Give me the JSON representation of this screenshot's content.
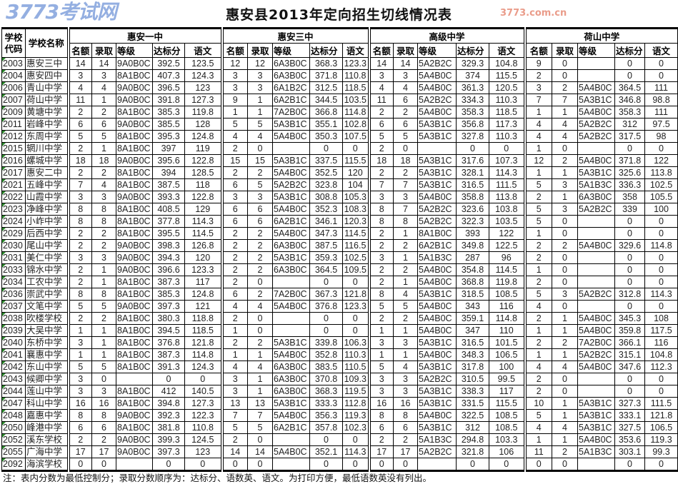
{
  "title": "惠安县2013年定向招生切线情况表",
  "header": {
    "code": "学校代码",
    "name": "学校名称",
    "groups": [
      "惠安一中",
      "惠安三中",
      "高级中学",
      "荷山中学"
    ],
    "sub": [
      "名额",
      "录取",
      "等级",
      "达标分",
      "语文"
    ]
  },
  "rows": [
    [
      "2003",
      "惠安三中",
      "14",
      "14",
      "9A0B0C",
      "392.5",
      "123.5",
      "12",
      "12",
      "6A3B0C",
      "368.3",
      "123.3",
      "14",
      "14",
      "5A2B2C",
      "329.3",
      "104.8",
      "9",
      "0",
      "",
      "0",
      "0"
    ],
    [
      "2004",
      "惠安四中",
      "3",
      "3",
      "8A1B0C",
      "407.3",
      "124.3",
      "3",
      "3",
      "6A3B0C",
      "371.8",
      "110.8",
      "3",
      "3",
      "5A4B0C",
      "374",
      "115.5",
      "2",
      "0",
      "",
      "0",
      "0"
    ],
    [
      "2006",
      "青山中学",
      "4",
      "4",
      "9A0B0C",
      "396.5",
      "123",
      "3",
      "3",
      "6A1B2C",
      "312.5",
      "118.5",
      "4",
      "4",
      "5A4B0C",
      "361.3",
      "120.5",
      "3",
      "2",
      "5A4B0C",
      "364.5",
      "111"
    ],
    [
      "2007",
      "荷山中学",
      "11",
      "1",
      "9A0B0C",
      "391.8",
      "127.3",
      "9",
      "1",
      "6A2B1C",
      "344.5",
      "103.5",
      "11",
      "6",
      "5A2B2C",
      "334.3",
      "110.3",
      "7",
      "7",
      "5A3B1C",
      "346.8",
      "98.8"
    ],
    [
      "2009",
      "黄塘中学",
      "2",
      "2",
      "8A1B0C",
      "385.3",
      "119.8",
      "1",
      "1",
      "7A2B0C",
      "366.8",
      "114.8",
      "2",
      "2",
      "5A4B0C",
      "358.3",
      "118.5",
      "1",
      "1",
      "5A4B0C",
      "358.3",
      "111"
    ],
    [
      "2011",
      "岩峰中学",
      "6",
      "6",
      "9A0B0C",
      "385.5",
      "128",
      "5",
      "5",
      "5A3B1C",
      "355.1",
      "102.8",
      "6",
      "6",
      "5A3B1C",
      "356.8",
      "117.3",
      "4",
      "4",
      "5A2B2C",
      "312",
      "97.5"
    ],
    [
      "2012",
      "东周中学",
      "5",
      "5",
      "8A1B0C",
      "395.3",
      "124.8",
      "4",
      "4",
      "5A4B0C",
      "350.3",
      "107.5",
      "5",
      "5",
      "5A3B1C",
      "327.8",
      "110.3",
      "4",
      "4",
      "5A2B2C",
      "317.5",
      "98"
    ],
    [
      "2015",
      "辋川中学",
      "2",
      "1",
      "8A1B0C",
      "397",
      "119",
      "2",
      "0",
      "",
      "0",
      "0",
      "2",
      "0",
      "",
      "0",
      "0",
      "1",
      "0",
      "",
      "0",
      "0"
    ],
    [
      "2016",
      "螺城中学",
      "18",
      "18",
      "9A0B0C",
      "395.6",
      "122.8",
      "15",
      "15",
      "5A3B1C",
      "337.5",
      "115.5",
      "18",
      "18",
      "5A3B1C",
      "317.6",
      "107.3",
      "12",
      "2",
      "5A4B0C",
      "371.8",
      "122"
    ],
    [
      "2017",
      "惠安二中",
      "2",
      "2",
      "8A1B0C",
      "394",
      "128.5",
      "2",
      "2",
      "5A4B0C",
      "352.5",
      "120",
      "2",
      "2",
      "5A3B1C",
      "328.1",
      "114.3",
      "1",
      "1",
      "5A3B1C",
      "325.6",
      "113.8"
    ],
    [
      "2021",
      "五峰中学",
      "7",
      "4",
      "8A1B0C",
      "387.5",
      "118",
      "6",
      "5",
      "5A2B2C",
      "323.8",
      "104",
      "7",
      "7",
      "5A3B1C",
      "316.5",
      "111.5",
      "5",
      "3",
      "5A1B3C",
      "336.3",
      "102.5"
    ],
    [
      "2022",
      "山霞中学",
      "3",
      "3",
      "9A0B0C",
      "393.3",
      "122.8",
      "3",
      "3",
      "5A3B1C",
      "308.8",
      "105.3",
      "3",
      "3",
      "5A4B0C",
      "358.8",
      "113.8",
      "2",
      "1",
      "6A3B0C",
      "358",
      "105.5"
    ],
    [
      "2023",
      "净峰中学",
      "8",
      "8",
      "8A1B0C",
      "408.5",
      "129",
      "6",
      "6",
      "5A4B0C",
      "352.3",
      "108.3",
      "8",
      "7",
      "5A2B2C",
      "323.6",
      "103.8",
      "5",
      "3",
      "5A2B2C",
      "339",
      "100"
    ],
    [
      "2024",
      "小岞中学",
      "8",
      "8",
      "8A1B0C",
      "377.8",
      "114.3",
      "6",
      "6",
      "6A2B1C",
      "346.1",
      "120.3",
      "8",
      "8",
      "5A2B2C",
      "322.3",
      "103.5",
      "5",
      "0",
      "",
      "0",
      "0"
    ],
    [
      "2029",
      "后西中学",
      "2",
      "2",
      "8A1B0C",
      "395.5",
      "114.5",
      "2",
      "2",
      "5A4B0C",
      "347.3",
      "114.5",
      "2",
      "1",
      "8A1B0C",
      "393",
      "122",
      "1",
      "0",
      "",
      "0",
      "0"
    ],
    [
      "2030",
      "尾山中学",
      "2",
      "2",
      "9A0B0C",
      "398.3",
      "126.8",
      "2",
      "2",
      "6A3B0C",
      "387.5",
      "116.5",
      "2",
      "2",
      "6A2B1C",
      "349.8",
      "122.5",
      "2",
      "2",
      "5A4B0C",
      "329.6",
      "114.8"
    ],
    [
      "2031",
      "美仁中学",
      "3",
      "3",
      "9A0B0C",
      "394.3",
      "120",
      "2",
      "2",
      "5A3B1C",
      "359.3",
      "102.5",
      "3",
      "1",
      "5A1B3C",
      "287",
      "96",
      "2",
      "0",
      "",
      "0",
      "0"
    ],
    [
      "2033",
      "锦水中学",
      "2",
      "1",
      "9A0B0C",
      "396.6",
      "123.3",
      "2",
      "2",
      "6A3B0C",
      "364.5",
      "109.5",
      "2",
      "2",
      "5A4B0C",
      "354.8",
      "114.5",
      "1",
      "0",
      "",
      "0",
      "0"
    ],
    [
      "2034",
      "工农中学",
      "2",
      "1",
      "8A1B0C",
      "387.3",
      "117",
      "2",
      "0",
      "",
      "0",
      "0",
      "2",
      "1",
      "5A4B0C",
      "368.8",
      "119.8",
      "2",
      "0",
      "",
      "0",
      "0"
    ],
    [
      "2036",
      "崇武中学",
      "8",
      "8",
      "8A1B0C",
      "385.3",
      "124.8",
      "6",
      "2",
      "7A2B0C",
      "367.3",
      "121.8",
      "8",
      "4",
      "5A3B1C",
      "318.5",
      "108.5",
      "5",
      "3",
      "5A2B2C",
      "312.8",
      "114.3"
    ],
    [
      "2037",
      "文笔中学",
      "5",
      "5",
      "9A0B0C",
      "397.3",
      "121",
      "4",
      "4",
      "5A4B0C",
      "376.8",
      "123.3",
      "5",
      "5",
      "5A4B0C",
      "343",
      "116",
      "4",
      "0",
      "",
      "0",
      "0"
    ],
    [
      "2038",
      "吹楼学校",
      "2",
      "2",
      "8A1B0C",
      "380.3",
      "118.8",
      "2",
      "0",
      "",
      "0",
      "0",
      "2",
      "2",
      "5A4B0C",
      "359.1",
      "114.8",
      "2",
      "1",
      "5A4B0C",
      "345.3",
      "108"
    ],
    [
      "2039",
      "大吴中学",
      "1",
      "1",
      "8A1B0C",
      "394.5",
      "118.5",
      "1",
      "0",
      "",
      "0",
      "0",
      "1",
      "1",
      "5A4B0C",
      "347",
      "110",
      "1",
      "1",
      "5A4B0C",
      "359.8",
      "117.5"
    ],
    [
      "2040",
      "东桥中学",
      "3",
      "1",
      "8A1B0C",
      "376.8",
      "121.8",
      "2",
      "2",
      "5A3B1C",
      "339.8",
      "106.3",
      "3",
      "3",
      "5A3B1C",
      "316.5",
      "101.5",
      "2",
      "2",
      "7A2B0C",
      "366.1",
      "116"
    ],
    [
      "2041",
      "襄惠中学",
      "1",
      "1",
      "8A1B0C",
      "387.3",
      "114.8",
      "1",
      "1",
      "5A4B0C",
      "352.8",
      "110.3",
      "1",
      "1",
      "5A4B0C",
      "348.3",
      "106.5",
      "1",
      "1",
      "5A2B2C",
      "315.1",
      "104.8"
    ],
    [
      "2042",
      "东山中学",
      "5",
      "5",
      "8A1B0C",
      "391.3",
      "124.3",
      "4",
      "4",
      "6A3B0C",
      "383.5",
      "110.5",
      "5",
      "4",
      "5A3B1C",
      "317.8",
      "100",
      "4",
      "4",
      "5A4B0C",
      "347.6",
      "112.3"
    ],
    [
      "2043",
      "候卿中学",
      "3",
      "0",
      "",
      "0",
      "0",
      "3",
      "1",
      "6A3B0C",
      "370.8",
      "109.3",
      "3",
      "3",
      "5A2B2C",
      "310.5",
      "99.5",
      "2",
      "0",
      "",
      "0",
      "0"
    ],
    [
      "2044",
      "莲山中学",
      "3",
      "3",
      "8A1B0C",
      "412",
      "140.5",
      "3",
      "1",
      "6A3B0C",
      "368.3",
      "119.5",
      "3",
      "3",
      "5A3B1C",
      "338.3",
      "117",
      "2",
      "0",
      "",
      "0",
      "0"
    ],
    [
      "2047",
      "科山中学",
      "16",
      "16",
      "8A1B0C",
      "394.8",
      "127.3",
      "13",
      "13",
      "5A3B1C",
      "333.3",
      "112.8",
      "16",
      "16",
      "5A3B1C",
      "331.5",
      "115.5",
      "10",
      "1",
      "5A3B1C",
      "327.3",
      "111.5"
    ],
    [
      "2048",
      "嘉惠中学",
      "8",
      "8",
      "9A0B0C",
      "392.3",
      "122.3",
      "7",
      "7",
      "5A4B0C",
      "356.3",
      "119.3",
      "8",
      "8",
      "5A4B0C",
      "322.5",
      "108.5",
      "5",
      "1",
      "5A3B1C",
      "333.1",
      "121.8"
    ],
    [
      "2050",
      "峰港中学",
      "6",
      "6",
      "8A1B0C",
      "381.8",
      "110.8",
      "5",
      "5",
      "6A2B1C",
      "357.8",
      "102.3",
      "6",
      "6",
      "5A3B1C",
      "312",
      "108.5",
      "4",
      "4",
      "5A3B1C",
      "327.5",
      "106.5"
    ],
    [
      "2052",
      "溪东学校",
      "2",
      "2",
      "9A0B0C",
      "399.3",
      "124.5",
      "2",
      "0",
      "",
      "0",
      "0",
      "2",
      "2",
      "5A1B3C",
      "294.8",
      "103.3",
      "1",
      "1",
      "5A4B0C",
      "353.6",
      "119.3"
    ],
    [
      "2055",
      "广海中学",
      "17",
      "17",
      "9A0B0C",
      "397.3",
      "123",
      "14",
      "14",
      "5A4B0C",
      "352.1",
      "114.3",
      "17",
      "17",
      "5A2B2C",
      "321.8",
      "106",
      "11",
      "2",
      "5A1B3C",
      "303.1",
      "99.3"
    ],
    [
      "2092",
      "海滨学校",
      "0",
      "0",
      "",
      "0",
      "0",
      "0",
      "0",
      "",
      "0",
      "0",
      "0",
      "0",
      "",
      "0",
      "0",
      "0",
      "0",
      "",
      "0",
      "0"
    ]
  ],
  "note": "注：表内分数为最低控制分；录取分数顺序为：达标分、语数英、语文。为打印方便，最低语数英没有列出。",
  "watermark": {
    "logo": "3773考试网",
    "site": "3773.com.cn"
  },
  "colors": {
    "cell_marker": "#2e8b2e"
  }
}
